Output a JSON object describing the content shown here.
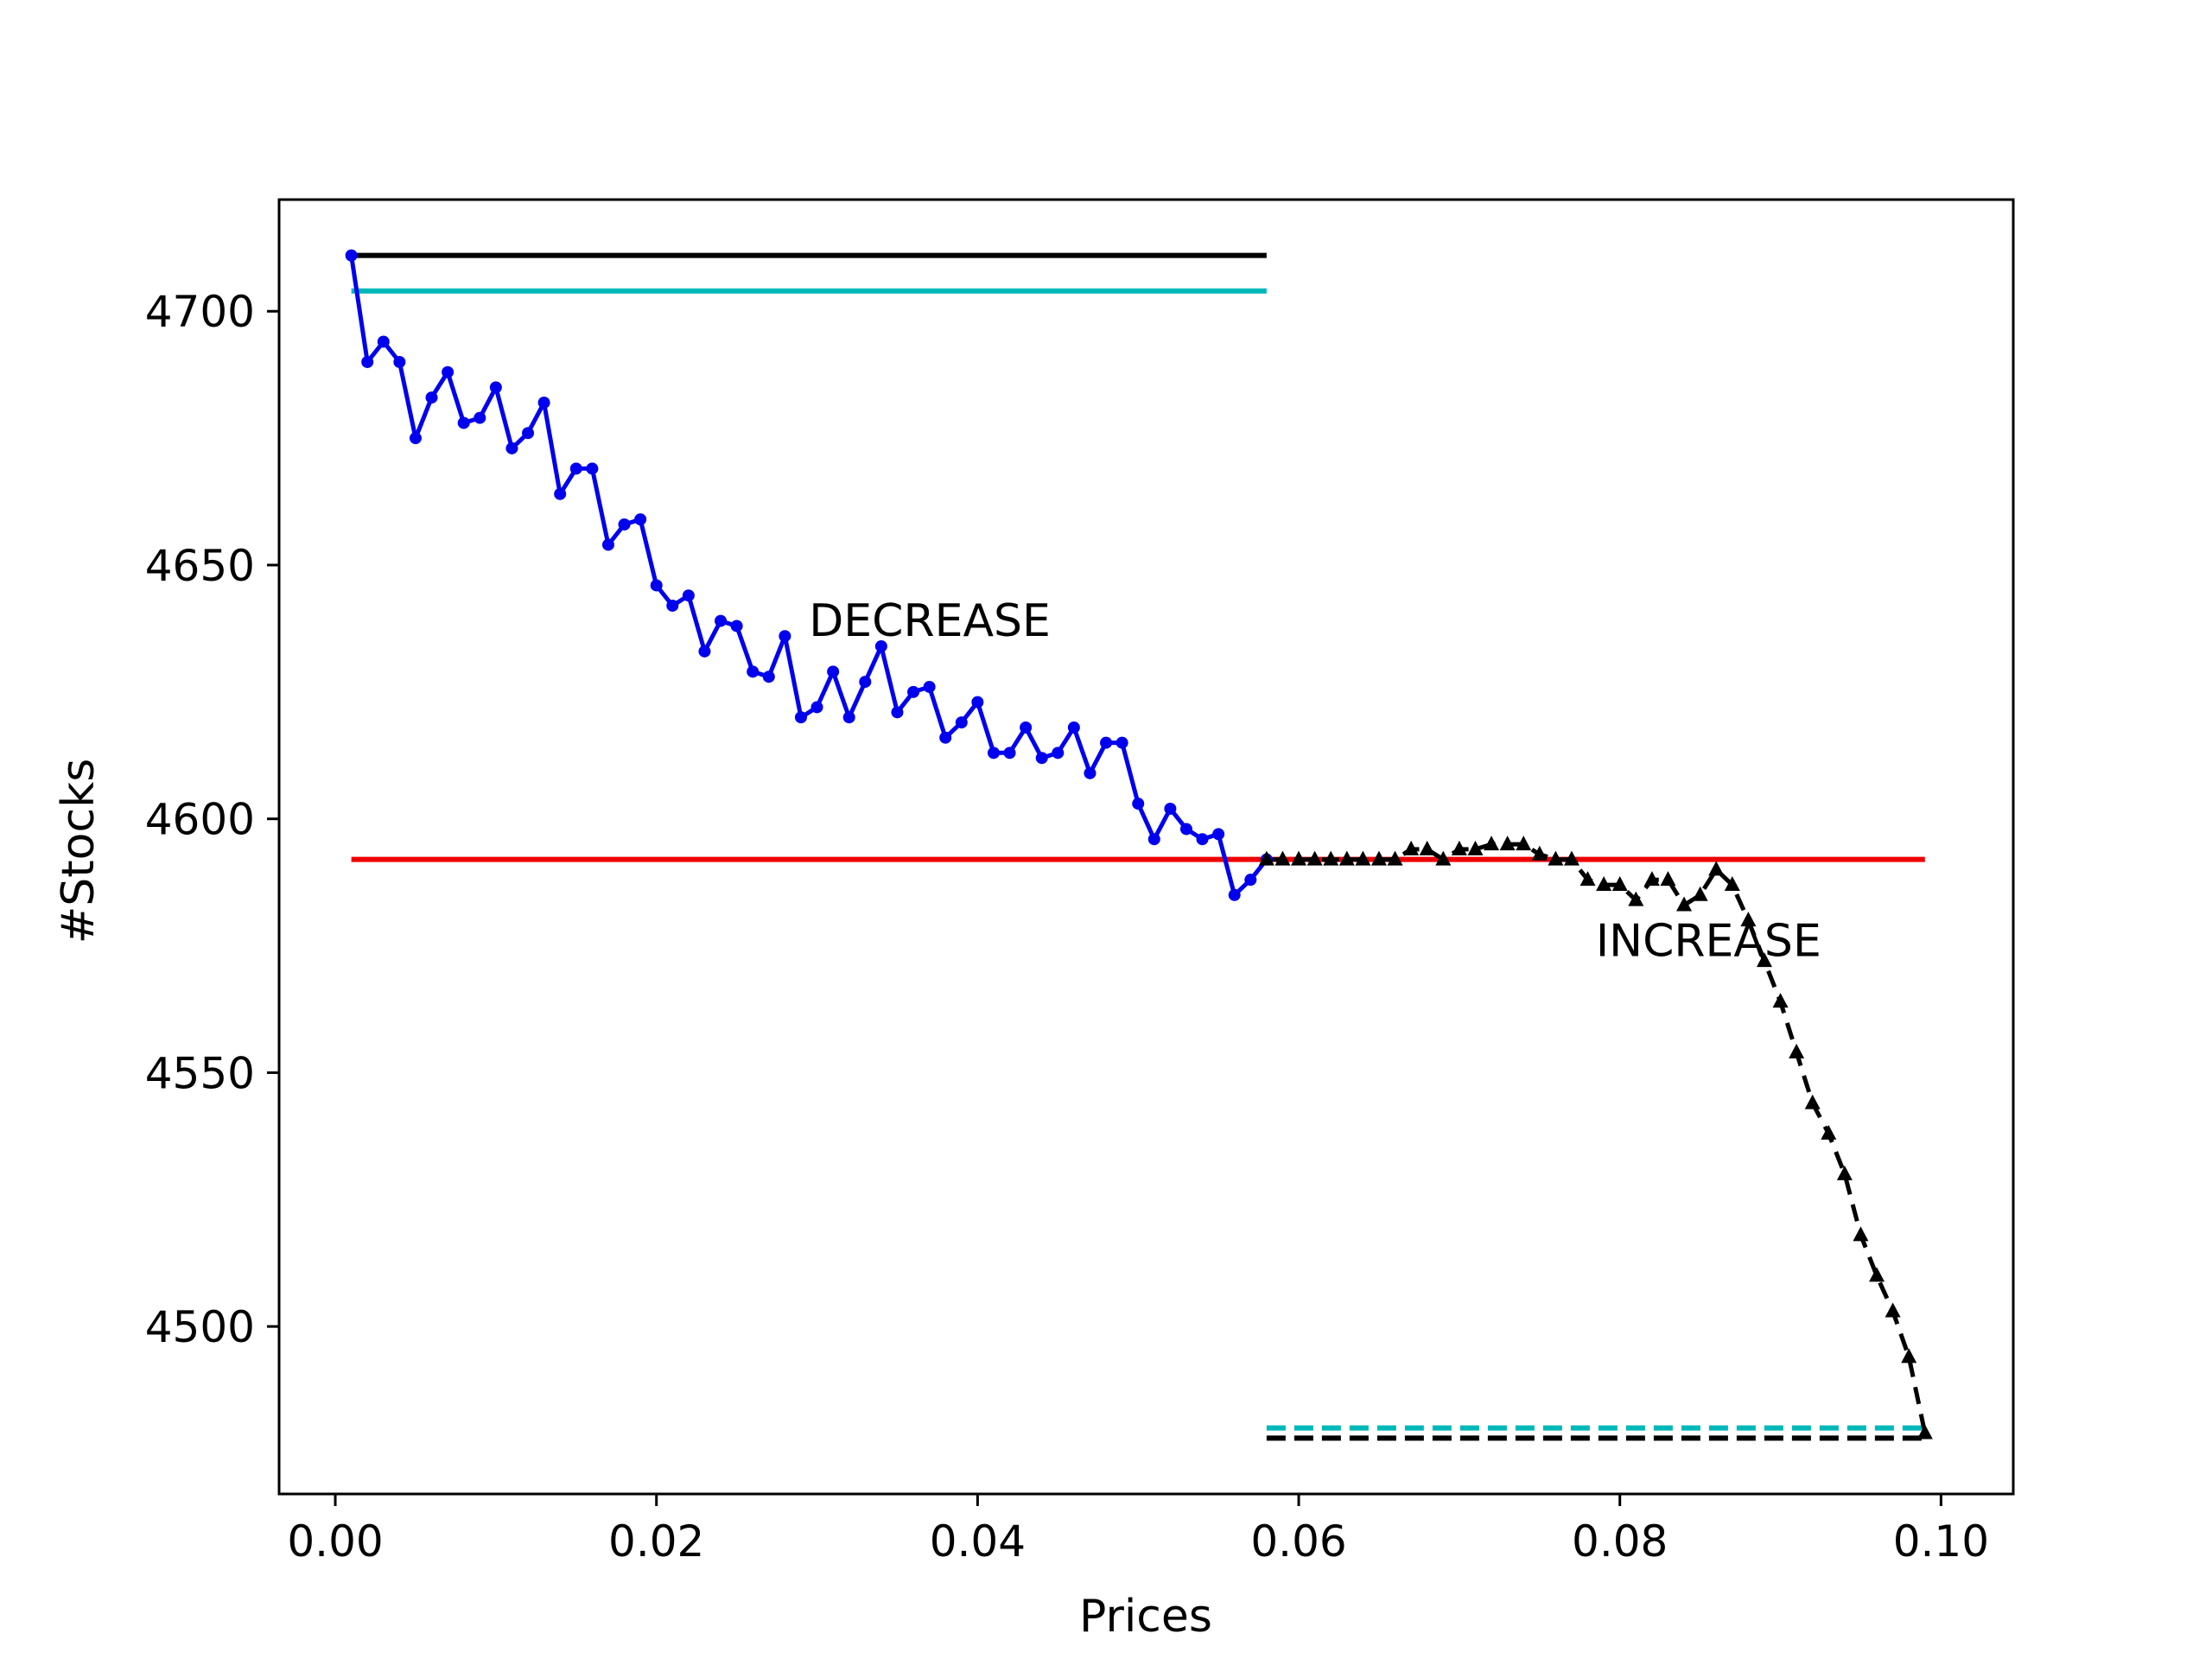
{
  "chart_data": {
    "type": "line",
    "title": "",
    "xlabel": "Prices",
    "ylabel": "#Stocks",
    "xlim": [
      -0.0035,
      0.1045
    ],
    "ylim": [
      4467,
      4722
    ],
    "xticks": [
      0.0,
      0.02,
      0.04,
      0.06,
      0.08,
      0.1
    ],
    "xtick_labels": [
      "0.00",
      "0.02",
      "0.04",
      "0.06",
      "0.08",
      "0.10"
    ],
    "yticks": [
      4500,
      4550,
      4600,
      4650,
      4700
    ],
    "ytick_labels": [
      "4500",
      "4550",
      "4600",
      "4650",
      "4700"
    ],
    "grid": false,
    "colors": {
      "decrease": "#0000ee",
      "increase": "#000000",
      "black_ref": "#000000",
      "cyan_ref": "#00b8b8",
      "red_ref": "#ee0000"
    },
    "series": [
      {
        "name": "decrease",
        "style": "solid",
        "marker": "dot",
        "x": [
          0.001,
          0.002,
          0.003,
          0.004,
          0.005,
          0.006,
          0.007,
          0.008,
          0.009,
          0.01,
          0.011,
          0.012,
          0.013,
          0.014,
          0.015,
          0.016,
          0.017,
          0.018,
          0.019,
          0.02,
          0.021,
          0.022,
          0.023,
          0.024,
          0.025,
          0.026,
          0.027,
          0.028,
          0.029,
          0.03,
          0.031,
          0.032,
          0.033,
          0.034,
          0.035,
          0.036,
          0.037,
          0.038,
          0.039,
          0.04,
          0.041,
          0.042,
          0.043,
          0.044,
          0.045,
          0.046,
          0.047,
          0.048,
          0.049,
          0.05,
          0.051,
          0.052,
          0.053,
          0.054,
          0.055,
          0.056,
          0.057,
          0.058
        ],
        "values": [
          4711,
          4690,
          4694,
          4690,
          4675,
          4683,
          4688,
          4678,
          4679,
          4685,
          4673,
          4676,
          4682,
          4664,
          4669,
          4669,
          4654,
          4658,
          4659,
          4646,
          4642,
          4644,
          4633,
          4639,
          4638,
          4629,
          4628,
          4636,
          4620,
          4622,
          4629,
          4620,
          4627,
          4634,
          4621,
          4625,
          4626,
          4616,
          4619,
          4623,
          4613,
          4613,
          4618,
          4612,
          4613,
          4618,
          4609,
          4615,
          4615,
          4603,
          4596,
          4602,
          4598,
          4596,
          4597,
          4585,
          4588,
          4592
        ]
      },
      {
        "name": "increase",
        "style": "dashed",
        "marker": "triangle",
        "x": [
          0.058,
          0.059,
          0.06,
          0.061,
          0.062,
          0.063,
          0.064,
          0.065,
          0.066,
          0.067,
          0.068,
          0.069,
          0.07,
          0.071,
          0.072,
          0.073,
          0.074,
          0.075,
          0.076,
          0.077,
          0.078,
          0.079,
          0.08,
          0.081,
          0.082,
          0.083,
          0.084,
          0.085,
          0.086,
          0.087,
          0.088,
          0.089,
          0.09,
          0.091,
          0.092,
          0.093,
          0.094,
          0.095,
          0.096,
          0.097,
          0.098,
          0.099
        ],
        "values": [
          4592,
          4592,
          4592,
          4592,
          4592,
          4592,
          4592,
          4592,
          4592,
          4594,
          4594,
          4592,
          4594,
          4594,
          4595,
          4595,
          4595,
          4593,
          4592,
          4592,
          4588,
          4587,
          4587,
          4584,
          4588,
          4588,
          4583,
          4585,
          4590,
          4587,
          4580,
          4572,
          4564,
          4554,
          4544,
          4538,
          4530,
          4518,
          4510,
          4503,
          4494,
          4479
        ]
      }
    ],
    "reference_lines": [
      {
        "name": "black-solid-line",
        "y": 4711,
        "x": [
          0.001,
          0.058
        ],
        "style": "solid",
        "color_key": "black_ref"
      },
      {
        "name": "cyan-solid-line",
        "y": 4704,
        "x": [
          0.001,
          0.058
        ],
        "style": "solid",
        "color_key": "cyan_ref"
      },
      {
        "name": "red-line",
        "y": 4592,
        "x": [
          0.001,
          0.099
        ],
        "style": "solid",
        "color_key": "red_ref"
      },
      {
        "name": "cyan-dashed-line",
        "y": 4480,
        "x": [
          0.058,
          0.099
        ],
        "style": "dashed",
        "color_key": "cyan_ref"
      },
      {
        "name": "black-dashed-line",
        "y": 4478,
        "x": [
          0.058,
          0.099
        ],
        "style": "dashed",
        "color_key": "black_ref"
      }
    ],
    "annotations": [
      {
        "name": "annotation-decrease",
        "text": "DECREASE",
        "x": 0.0295,
        "y": 4636
      },
      {
        "name": "annotation-increase",
        "text": "INCREASE",
        "x": 0.0785,
        "y": 4573
      }
    ]
  }
}
